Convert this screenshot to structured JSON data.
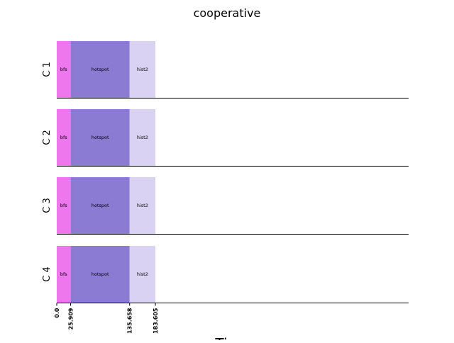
{
  "chart_data": {
    "type": "bar",
    "orientation": "horizontal-stacked",
    "title": "cooperative",
    "xlabel": "Ti",
    "ylabel": "",
    "rows": [
      "C 1",
      "C 2",
      "C 3",
      "C 4"
    ],
    "segments": [
      {
        "label": "bfs",
        "start": 0.0,
        "end": 25.909,
        "color": "#ee77ee"
      },
      {
        "label": "hotspot",
        "start": 25.909,
        "end": 135.658,
        "color": "#8b7bd3"
      },
      {
        "label": "hist2",
        "start": 135.658,
        "end": 183.605,
        "color": "#dad2f2"
      }
    ],
    "xticks": [
      "0.0",
      "25.909",
      "135.658",
      "183.605"
    ],
    "xlim": [
      0,
      655
    ],
    "grid": false,
    "legend": "none"
  }
}
